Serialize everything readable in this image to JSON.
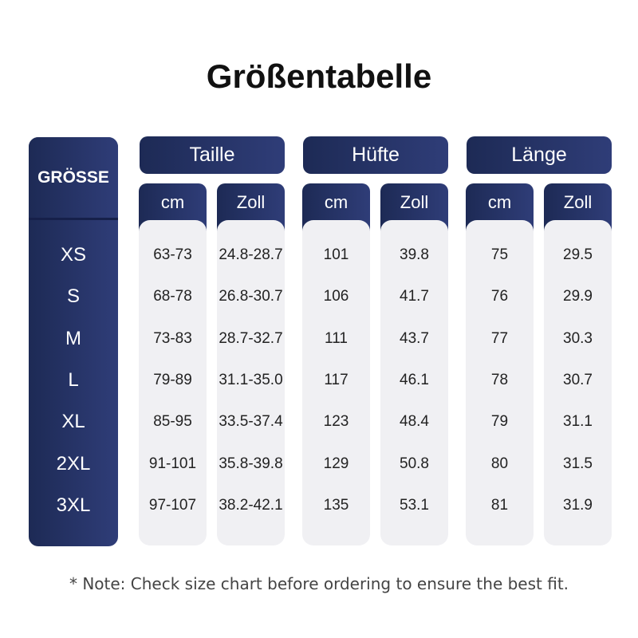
{
  "title": "Größentabelle",
  "table": {
    "size_header": "GRÖSSE",
    "sizes": [
      "XS",
      "S",
      "M",
      "L",
      "XL",
      "2XL",
      "3XL"
    ],
    "groups": [
      {
        "name": "Taille",
        "columns": [
          {
            "unit": "cm",
            "values": [
              "63-73",
              "68-78",
              "73-83",
              "79-89",
              "85-95",
              "91-101",
              "97-107"
            ]
          },
          {
            "unit": "Zoll",
            "values": [
              "24.8-28.7",
              "26.8-30.7",
              "28.7-32.7",
              "31.1-35.0",
              "33.5-37.4",
              "35.8-39.8",
              "38.2-42.1"
            ]
          }
        ]
      },
      {
        "name": "Hüfte",
        "columns": [
          {
            "unit": "cm",
            "values": [
              "101",
              "106",
              "111",
              "117",
              "123",
              "129",
              "135"
            ]
          },
          {
            "unit": "Zoll",
            "values": [
              "39.8",
              "41.7",
              "43.7",
              "46.1",
              "48.4",
              "50.8",
              "53.1"
            ]
          }
        ]
      },
      {
        "name": "Länge",
        "columns": [
          {
            "unit": "cm",
            "values": [
              "75",
              "76",
              "77",
              "78",
              "79",
              "80",
              "81"
            ]
          },
          {
            "unit": "Zoll",
            "values": [
              "29.5",
              "29.9",
              "30.3",
              "30.7",
              "31.1",
              "31.5",
              "31.9"
            ]
          }
        ]
      }
    ]
  },
  "note": "* Note: Check size chart before ordering to ensure the best fit."
}
